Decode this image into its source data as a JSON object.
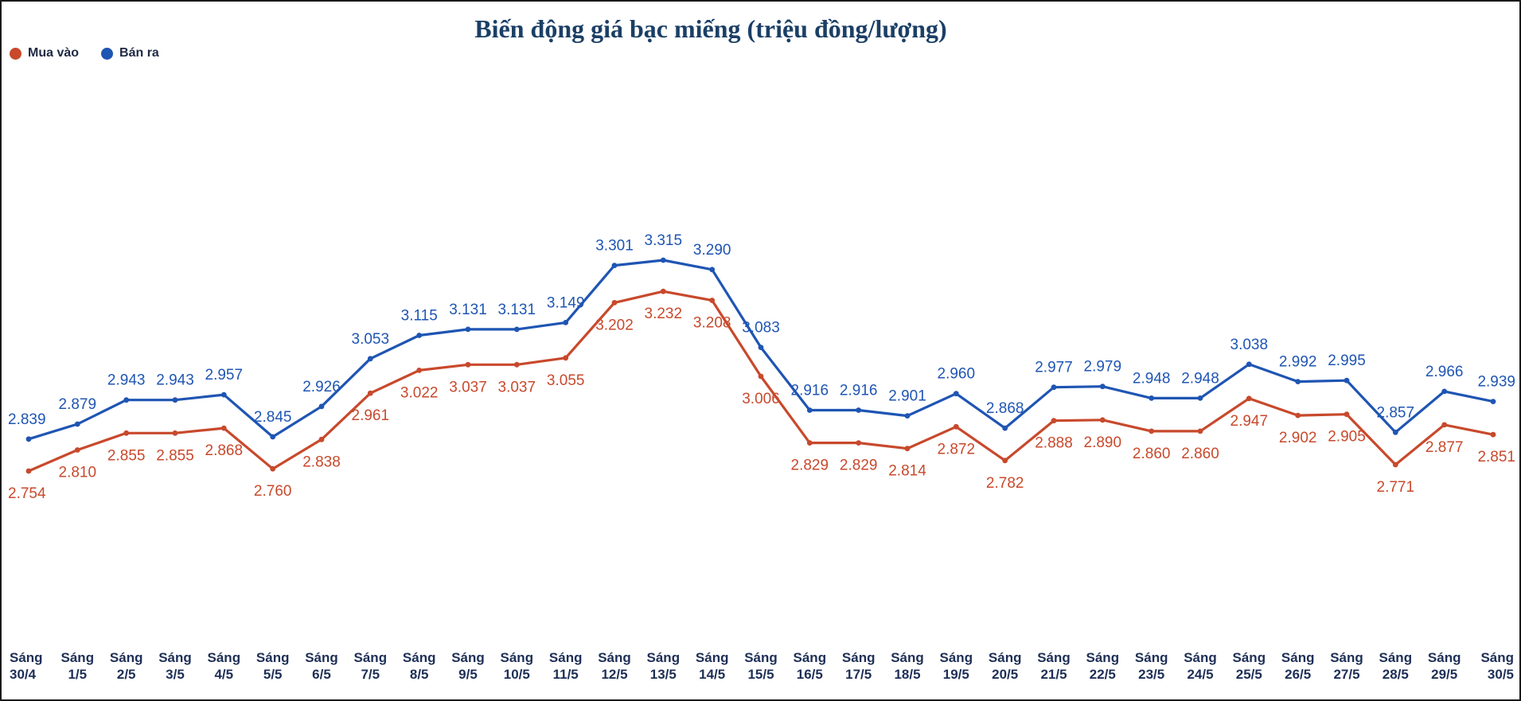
{
  "chart_data": {
    "type": "line",
    "title": "Biến động giá bạc miếng (triệu đồng/lượng)",
    "xlabel": "",
    "ylabel": "",
    "grid": false,
    "legend_placement": "top-left",
    "categories": [
      [
        "Sáng",
        "30/4"
      ],
      [
        "Sáng",
        "1/5"
      ],
      [
        "Sáng",
        "2/5"
      ],
      [
        "Sáng",
        "3/5"
      ],
      [
        "Sáng",
        "4/5"
      ],
      [
        "Sáng",
        "5/5"
      ],
      [
        "Sáng",
        "6/5"
      ],
      [
        "Sáng",
        "7/5"
      ],
      [
        "Sáng",
        "8/5"
      ],
      [
        "Sáng",
        "9/5"
      ],
      [
        "Sáng",
        "10/5"
      ],
      [
        "Sáng",
        "11/5"
      ],
      [
        "Sáng",
        "12/5"
      ],
      [
        "Sáng",
        "13/5"
      ],
      [
        "Sáng",
        "14/5"
      ],
      [
        "Sáng",
        "15/5"
      ],
      [
        "Sáng",
        "16/5"
      ],
      [
        "Sáng",
        "17/5"
      ],
      [
        "Sáng",
        "18/5"
      ],
      [
        "Sáng",
        "19/5"
      ],
      [
        "Sáng",
        "20/5"
      ],
      [
        "Sáng",
        "21/5"
      ],
      [
        "Sáng",
        "22/5"
      ],
      [
        "Sáng",
        "23/5"
      ],
      [
        "Sáng",
        "24/5"
      ],
      [
        "Sáng",
        "25/5"
      ],
      [
        "Sáng",
        "26/5"
      ],
      [
        "Sáng",
        "27/5"
      ],
      [
        "Sáng",
        "28/5"
      ],
      [
        "Sáng",
        "29/5"
      ],
      [
        "Sáng",
        "30/5"
      ]
    ],
    "series": [
      {
        "name": "Mua vào",
        "color": "#c8492c",
        "label_position": "below",
        "values": [
          2.754,
          2.81,
          2.855,
          2.855,
          2.868,
          2.76,
          2.838,
          2.961,
          3.022,
          3.037,
          3.037,
          3.055,
          3.202,
          3.232,
          3.208,
          3.006,
          2.829,
          2.829,
          2.814,
          2.872,
          2.782,
          2.888,
          2.89,
          2.86,
          2.86,
          2.947,
          2.902,
          2.905,
          2.771,
          2.877,
          2.851
        ],
        "labels": [
          "2.754",
          "2.810",
          "2.855",
          "2.855",
          "2.868",
          "2.760",
          "2.838",
          "2.961",
          "3.022",
          "3.037",
          "3.037",
          "3.055",
          "3.202",
          "3.232",
          "3.208",
          "3.006",
          "2.829",
          "2.829",
          "2.814",
          "2.872",
          "2.782",
          "2.888",
          "2.890",
          "2.860",
          "2.860",
          "2.947",
          "2.902",
          "2.905",
          "2.771",
          "2.877",
          "2.851"
        ]
      },
      {
        "name": "Bán ra",
        "color": "#1f55b3",
        "label_position": "above",
        "values": [
          2.839,
          2.879,
          2.943,
          2.943,
          2.957,
          2.845,
          2.926,
          3.053,
          3.115,
          3.131,
          3.131,
          3.149,
          3.301,
          3.315,
          3.29,
          3.083,
          2.916,
          2.916,
          2.901,
          2.96,
          2.868,
          2.977,
          2.979,
          2.948,
          2.948,
          3.038,
          2.992,
          2.995,
          2.857,
          2.966,
          2.939
        ],
        "labels": [
          "2.839",
          "2.879",
          "2.943",
          "2.943",
          "2.957",
          "2.845",
          "2.926",
          "3.053",
          "3.115",
          "3.131",
          "3.131",
          "3.149",
          "3.301",
          "3.315",
          "3.290",
          "3.083",
          "2.916",
          "2.916",
          "2.901",
          "2.960",
          "2.868",
          "2.977",
          "2.979",
          "2.948",
          "2.948",
          "3.038",
          "2.992",
          "2.995",
          "2.857",
          "2.966",
          "2.939"
        ]
      }
    ]
  }
}
